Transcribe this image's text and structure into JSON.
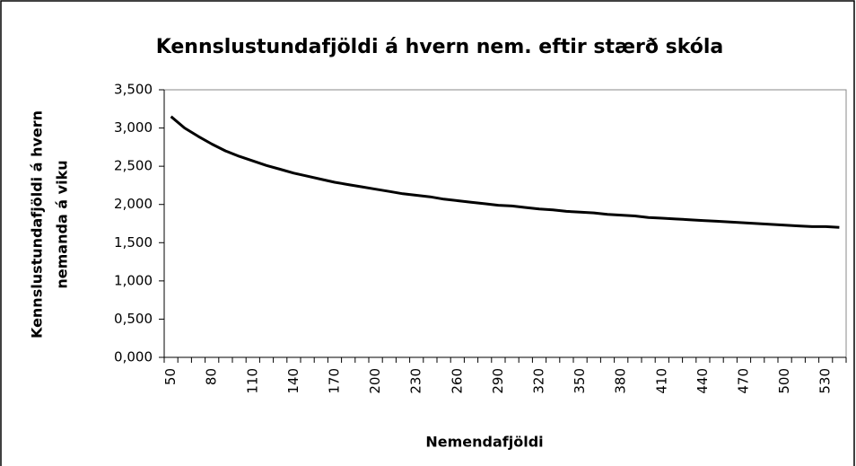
{
  "chart_data": {
    "type": "line",
    "title": "Kennslustundafjöldi á hvern nem. eftir stærð skóla",
    "ylabel": [
      "Kennslustundafjöldi á hvern",
      "nemanda á viku"
    ],
    "xlabel": "Nemendafjöldi",
    "categories": [
      "50",
      null,
      null,
      "80",
      null,
      null,
      "110",
      null,
      null,
      "140",
      null,
      null,
      "170",
      null,
      null,
      "200",
      null,
      null,
      "230",
      null,
      null,
      "260",
      null,
      null,
      "290",
      null,
      null,
      "320",
      null,
      null,
      "350",
      null,
      null,
      "380",
      null,
      null,
      "410",
      null,
      null,
      "440",
      null,
      null,
      "470",
      null,
      null,
      "500",
      null,
      null,
      "530",
      null
    ],
    "series": [
      {
        "name": "Kennslustundafjöldi",
        "color": "#000000",
        "values": [
          3.15,
          3.0,
          2.89,
          2.79,
          2.7,
          2.63,
          2.57,
          2.51,
          2.46,
          2.41,
          2.37,
          2.33,
          2.29,
          2.26,
          2.23,
          2.2,
          2.17,
          2.14,
          2.12,
          2.1,
          2.07,
          2.05,
          2.03,
          2.01,
          1.99,
          1.98,
          1.96,
          1.94,
          1.93,
          1.91,
          1.9,
          1.89,
          1.87,
          1.86,
          1.85,
          1.83,
          1.82,
          1.81,
          1.8,
          1.79,
          1.78,
          1.77,
          1.76,
          1.75,
          1.74,
          1.73,
          1.72,
          1.71,
          1.71,
          1.7
        ]
      }
    ],
    "ylim": [
      0,
      3.5
    ],
    "yticks": [
      {
        "value": 0,
        "label": "0,000"
      },
      {
        "value": 0.5,
        "label": "0,500"
      },
      {
        "value": 1,
        "label": "1,000"
      },
      {
        "value": 1.5,
        "label": "1,500"
      },
      {
        "value": 2,
        "label": "2,000"
      },
      {
        "value": 2.5,
        "label": "2,500"
      },
      {
        "value": 3,
        "label": "3,000"
      },
      {
        "value": 3.5,
        "label": "3,500"
      }
    ],
    "grid": false
  }
}
